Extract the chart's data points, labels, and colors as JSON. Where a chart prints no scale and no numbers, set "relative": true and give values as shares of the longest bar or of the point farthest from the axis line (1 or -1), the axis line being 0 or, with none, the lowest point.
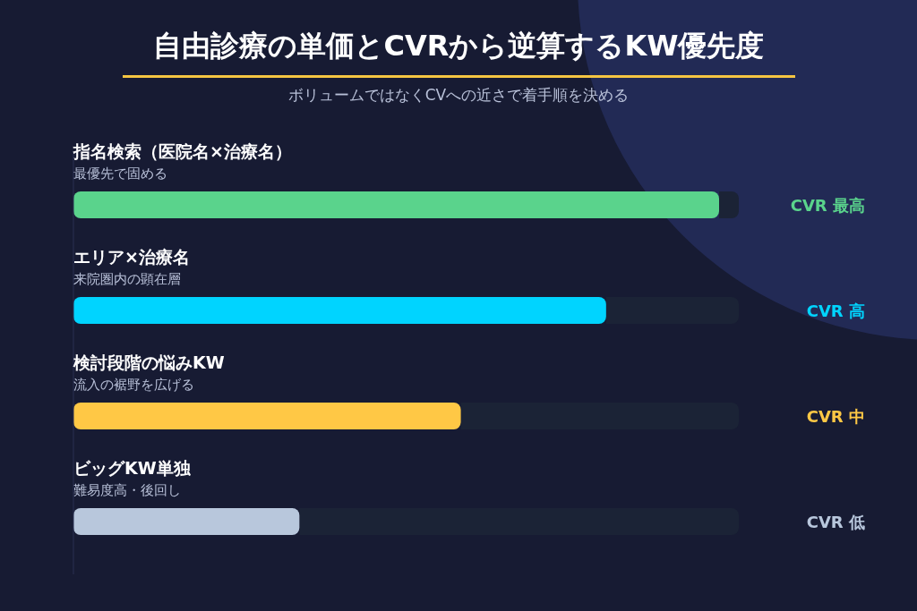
{
  "chart_data": {
    "type": "bar",
    "orientation": "horizontal",
    "relative": true,
    "title": "自由診療の単価とCVRから逆算するKW優先度",
    "subtitle": "ボリュームではなくCVへの近さで着手順を決める",
    "categories": [
      "指名検索（医院名×治療名）",
      "エリア×治療名",
      "検討段階の悩みKW",
      "ビッグKW単独"
    ],
    "values": [
      1,
      0.825,
      0.6,
      0.35
    ],
    "colors": [
      "#5ad38c",
      "#00d4ff",
      "#ffc845",
      "#b8c7dc"
    ],
    "annotations": [
      "最優先で固める",
      "CVR 最高",
      "来院圏内の顕在層",
      "CVR 高",
      "流入の裾野を広げる",
      "CVR 中",
      "難易度高・後回し",
      "CVR 低"
    ],
    "grid": false,
    "legend": false
  }
}
